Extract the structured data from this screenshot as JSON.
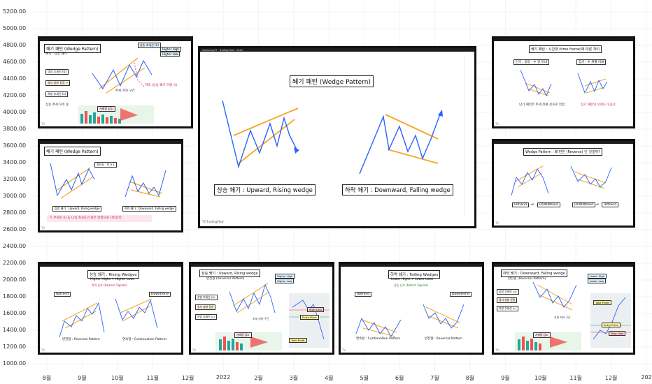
{
  "chart_data": {
    "type": "line",
    "title": "",
    "xlabel": "",
    "ylabel": "",
    "ylim": [
      1000,
      5200
    ],
    "grid": true,
    "y_ticks": [
      "5200.00",
      "5000.00",
      "4800.00",
      "4600.00",
      "4400.00",
      "4200.00",
      "4000.00",
      "3800.00",
      "3600.00",
      "3400.00",
      "3200.00",
      "3000.00",
      "2800.00",
      "2600.00",
      "2400.00",
      "2200.00",
      "2000.00",
      "1800.00",
      "1600.00",
      "1400.00",
      "1200.00",
      "1000.00"
    ],
    "x_ticks": [
      "8월",
      "9월",
      "10월",
      "11월",
      "12월",
      "2022",
      "2월",
      "3월",
      "4월",
      "5월",
      "6월",
      "7월",
      "8월",
      "9월",
      "10월",
      "11월",
      "12월",
      "202"
    ]
  },
  "panels": {
    "p1": {
      "title": "쐐기 패턴 (Wedge Pattern)",
      "subtitle": "예시 : 상승 쐐기",
      "legend1": "상승 추세선 (U)",
      "legend2": "Higher High",
      "legend3": "Higher Low",
      "side1": "상방 추세선 (U)",
      "side2": "경사 방향 같음 ↗",
      "side3": "하방 추세선 (L)",
      "note1": "추세 저하 구간",
      "note2": "하락 (상승 쐐기 이탈 시)",
      "bottom": "상승 추세 지속 중",
      "pink": "거래량 감소"
    },
    "p2": {
      "title": "쐐기 패턴 (Wedge Pattern)",
      "note": "경사도 : U > L",
      "cap1": "상승 쐐기 : Upward, Rising wedge",
      "cap2": "하락 쐐기 : Downward, Falling wedge",
      "bottom": "두 추세선 (U & L)의 경사도가 같은 방향으로 나타난다"
    },
    "p3": {
      "header": "Gamsung73 · TradingView · 2022",
      "title": "쐐기 패턴 (Wedge Pattern)",
      "rising": "상승 쐐기 : Upward, Rising wedge",
      "falling": "하락 쐐기 : Downward, Falling wedge",
      "logo": "TV TradingView"
    },
    "p4": {
      "title": "쐐기 패턴 : 시간대 (time frame)에 따른 차이",
      "left": "단기 : 일일 - 수 일 이내",
      "right": "장기 : 수 개월 이내",
      "note1": "단기 패턴은 추세 전환 신호로 약함",
      "note2": "장기 패턴의 신뢰도가 높다"
    },
    "p5": {
      "title": "Wedge Pattern : 왜 반전 (Reverse) 인 것일까?",
      "b1": "UPtrend",
      "b2": "DOWNtrend",
      "b3": "DOWNtrend",
      "b4": "UPtrend"
    },
    "p6": {
      "title": "상승 쐐기 : Rising Wedges",
      "sub": "Higher Highs + Higher Lows",
      "tag": "하락 신호 (Bearish Signals)",
      "b1": "Uptrend",
      "b2": "Downtrend",
      "cap1": "반전형 : Reversal Pattern",
      "cap2": "연속형 : Continuation Pattern"
    },
    "p7": {
      "title": "상승 쐐기 : Upward, Rising wedge",
      "sub": "반전형 (Reversal Pattern)",
      "h1": "Higher High",
      "h2": "Higher Low",
      "s1": "상방 추세선 (U)",
      "s2": "경사 방향 같음",
      "s3": "하방 추세선 (L)",
      "stop": "Stop Loss",
      "entry": "Entry Price",
      "tp": "Take Profit",
      "note": "추세 저하 구간",
      "pink": "거래량 감소"
    },
    "p8": {
      "title": "하락 쐐기 : Falling Wedges",
      "sub": "Lower Highs + Lower Lows",
      "tag": "상승 신호 (Bullish Signals)",
      "b1": "Uptrend",
      "b2": "Downtrend",
      "cap1": "연속형 : Continuation Pattern",
      "cap2": "반전형 : Reversal Pattern"
    },
    "p9": {
      "title": "하락 쐐기 : Downward, Falling wedge",
      "sub": "반전형 (Reversal Pattern)",
      "h1": "Lower High",
      "h2": "Lower Low",
      "s1": "상방 추세선 (U)",
      "s2": "경사 방향 같음",
      "s3": "하방 추세선 (L)",
      "stop": "Stop Loss",
      "entry": "Entry Price",
      "tp": "Take Profit",
      "note": "추세 저하 구간",
      "pink": "거래량 감소"
    }
  }
}
